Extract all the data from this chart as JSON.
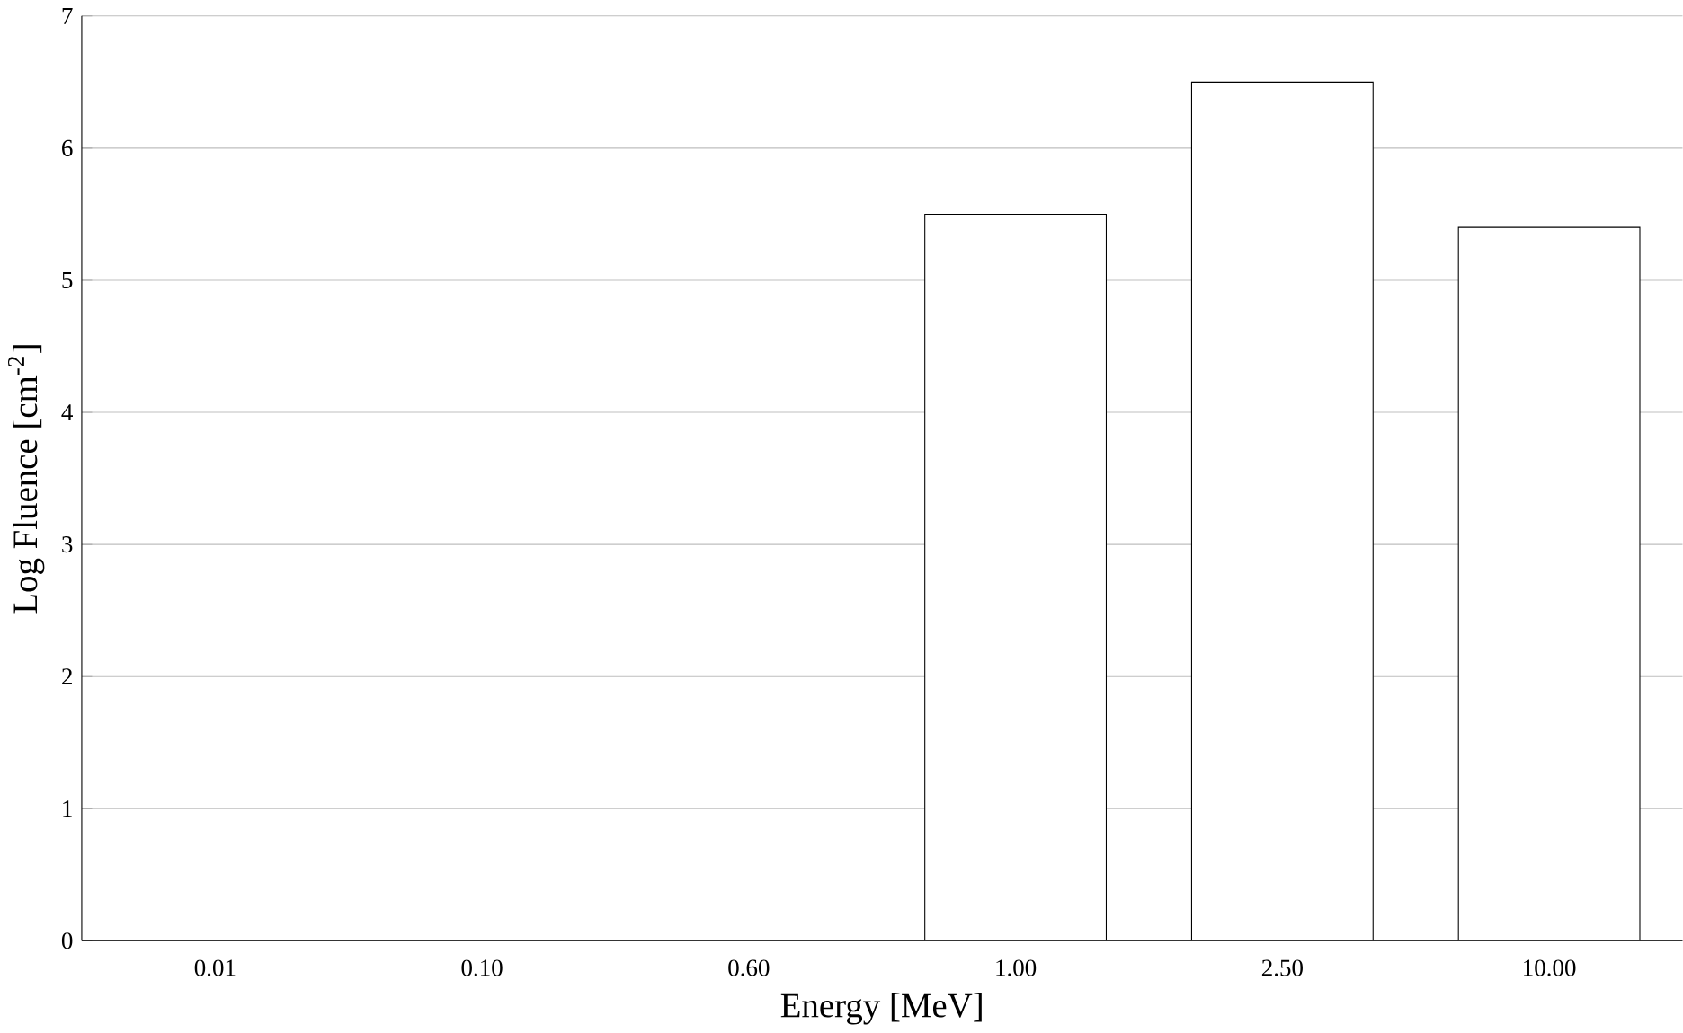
{
  "chart_data": {
    "type": "bar",
    "xlabel": "Energy [MeV]",
    "ylabel": "Log Fluence [cm$^{-2}$]",
    "categories": [
      "0.01",
      "0.10",
      "0.60",
      "1.00",
      "2.50",
      "10.00"
    ],
    "values": [
      null,
      null,
      null,
      5.5,
      6.5,
      5.4
    ],
    "color": "#ffffff",
    "ylim": [
      0,
      7
    ],
    "yticks": [
      0,
      1,
      2,
      3,
      4,
      5,
      6,
      7
    ],
    "grid": "y"
  }
}
